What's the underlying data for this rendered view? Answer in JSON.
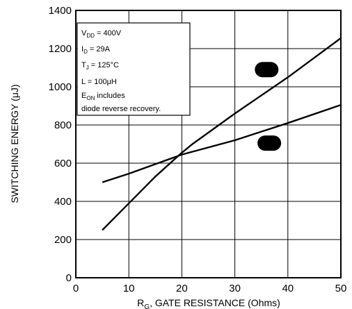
{
  "chart_data": {
    "type": "line",
    "xlabel_main": "R",
    "xlabel_sub": "G",
    "xlabel_rest": ", GATE RESISTANCE (Ohms)",
    "ylabel": "SWITCHING ENERGY (μJ)",
    "xlim": [
      0,
      50
    ],
    "ylim": [
      0,
      1400
    ],
    "xticks": [
      0,
      10,
      20,
      30,
      40,
      50
    ],
    "yticks": [
      0,
      200,
      400,
      600,
      800,
      1000,
      1200,
      1400
    ],
    "grid": true,
    "series": [
      {
        "x": [
          5,
          10,
          15,
          20,
          22,
          30,
          40,
          50
        ],
        "values": [
          250,
          390,
          530,
          655,
          700,
          860,
          1050,
          1255
        ],
        "marker_y": 1090,
        "marker_x": 36
      },
      {
        "x": [
          5,
          10,
          15,
          20,
          30,
          40,
          50
        ],
        "values": [
          500,
          545,
          595,
          645,
          720,
          810,
          905
        ],
        "marker_y": 705,
        "marker_x": 36.5
      }
    ],
    "conditions": {
      "vdd_main": "V",
      "vdd_sub": "DD",
      "vdd_rest": " = 400V",
      "id_main": "I",
      "id_sub": "D",
      "id_rest": " = 29A",
      "tj_main": "T",
      "tj_sub": "J",
      "tj_rest": " = 125°C",
      "l_line": "L = 100μH",
      "eon_main": "E",
      "eon_sub": "ON",
      "eon_rest": "  includes",
      "diode_line": "diode reverse recovery."
    }
  }
}
